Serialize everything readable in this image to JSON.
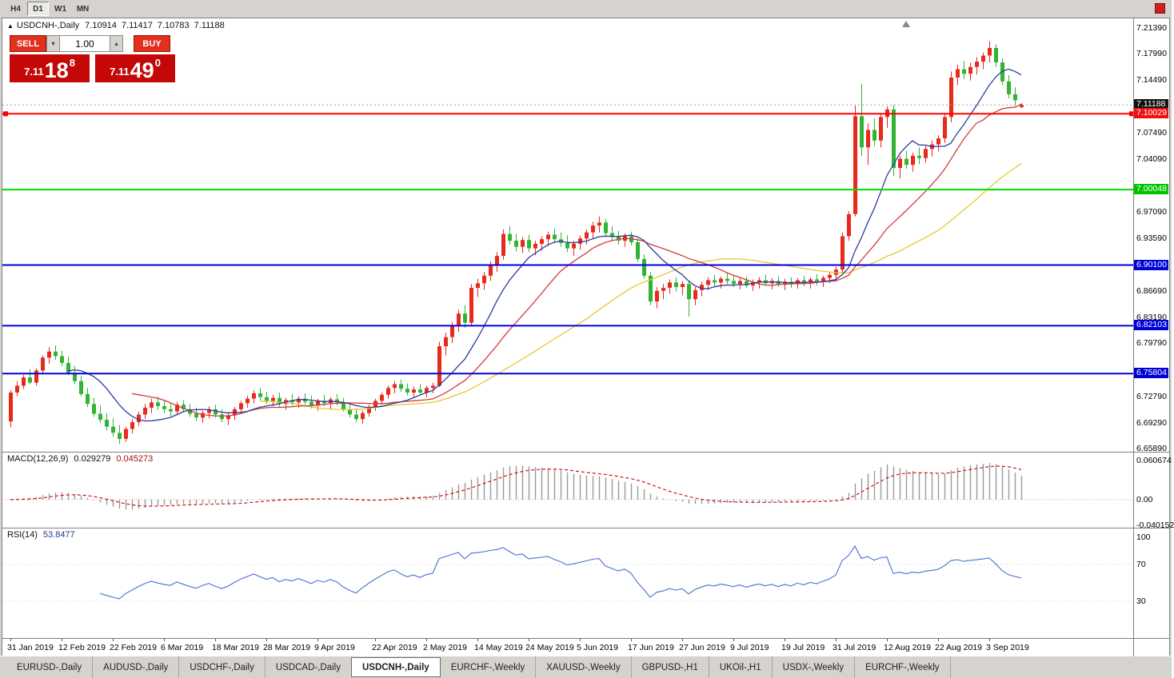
{
  "toolbar": {
    "periods": [
      "H4",
      "D1",
      "W1",
      "MN"
    ],
    "active_period": "D1"
  },
  "trade_panel": {
    "sell_label": "SELL",
    "buy_label": "BUY",
    "volume": "1.00",
    "sell_price": {
      "prefix": "7.11",
      "main": "18",
      "sup": "8"
    },
    "buy_price": {
      "prefix": "7.11",
      "main": "49",
      "sup": "0"
    }
  },
  "chart_header": {
    "symbol": "USDCNH-,Daily",
    "open": "7.10914",
    "high": "7.11417",
    "low": "7.10783",
    "close": "7.11188"
  },
  "current_price": 7.11188,
  "hlines": [
    {
      "price": 7.10029,
      "color": "#ff0000",
      "width": 2,
      "markers": true
    },
    {
      "price": 7.00048,
      "color": "#00dd00",
      "width": 2,
      "markers": false
    },
    {
      "price": 6.901,
      "color": "#0000e0",
      "width": 2,
      "markers": false
    },
    {
      "price": 6.82103,
      "color": "#0000e0",
      "width": 2,
      "markers": false
    },
    {
      "price": 6.75804,
      "color": "#0000e0",
      "width": 2,
      "markers": false
    }
  ],
  "price_axis": {
    "labels": [
      "7.21390",
      "7.17990",
      "7.14490",
      "7.07490",
      "7.04090",
      "6.97090",
      "6.93590",
      "6.86690",
      "6.83190",
      "6.79790",
      "6.72790",
      "6.69290",
      "6.65890"
    ],
    "special": [
      {
        "value": "7.11188",
        "bg": "#101010"
      },
      {
        "value": "7.10029",
        "bg": "#ee1111"
      },
      {
        "value": "7.00048",
        "bg": "#00c400"
      },
      {
        "value": "6.90100",
        "bg": "#0000d8"
      },
      {
        "value": "6.82103",
        "bg": "#0000d8"
      },
      {
        "value": "6.75804",
        "bg": "#0000d8"
      }
    ]
  },
  "indicators": {
    "macd": {
      "title": "MACD(12,26,9)",
      "value1": "0.029279",
      "value2": "0.045273",
      "axis": [
        "0.060674",
        "0.00",
        "-0.040152"
      ],
      "range": [
        -0.044,
        0.075
      ]
    },
    "rsi": {
      "title": "RSI(14)",
      "value": "53.8477",
      "axis": [
        100,
        70,
        30
      ],
      "levels": [
        70,
        30
      ],
      "range": [
        -10,
        110
      ]
    }
  },
  "tabs": [
    {
      "label": "EURUSD-,Daily",
      "active": false
    },
    {
      "label": "AUDUSD-,Daily",
      "active": false
    },
    {
      "label": "USDCHF-,Daily",
      "active": false
    },
    {
      "label": "USDCAD-,Daily",
      "active": false
    },
    {
      "label": "USDCNH-,Daily",
      "active": true
    },
    {
      "label": "EURCHF-,Weekly",
      "active": false
    },
    {
      "label": "XAUUSD-,Weekly",
      "active": false
    },
    {
      "label": "GBPUSD-,H1",
      "active": false
    },
    {
      "label": "UKOil-,H1",
      "active": false
    },
    {
      "label": "USDX-,Weekly",
      "active": false
    },
    {
      "label": "EURCHF-,Weekly",
      "active": false
    }
  ],
  "chart_data": {
    "type": "candlestick",
    "symbol": "USDCNH",
    "timeframe": "Daily",
    "price_range": [
      6.655,
      7.226
    ],
    "ma_periods": {
      "fast": 10,
      "mid": 20,
      "slow": 40
    },
    "colors": {
      "up": "#e8291c",
      "down": "#30b434",
      "ma_fast": "#2b3a9e",
      "ma_mid": "#d43a3a",
      "ma_slow": "#e6c92e",
      "macd_hist": "#9a9a9a",
      "macd_signal": "#cc0000",
      "rsi": "#4a6fd4"
    },
    "shift_marker_idx": 140,
    "date_labels": [
      {
        "label": "31 Jan 2019",
        "idx": 0
      },
      {
        "label": "12 Feb 2019",
        "idx": 8
      },
      {
        "label": "22 Feb 2019",
        "idx": 16
      },
      {
        "label": "6 Mar 2019",
        "idx": 24
      },
      {
        "label": "18 Mar 2019",
        "idx": 32
      },
      {
        "label": "28 Mar 2019",
        "idx": 40
      },
      {
        "label": "9 Apr 2019",
        "idx": 48
      },
      {
        "label": "22 Apr 2019",
        "idx": 57
      },
      {
        "label": "2 May 2019",
        "idx": 65
      },
      {
        "label": "14 May 2019",
        "idx": 73
      },
      {
        "label": "24 May 2019",
        "idx": 81
      },
      {
        "label": "5 Jun 2019",
        "idx": 89
      },
      {
        "label": "17 Jun 2019",
        "idx": 97
      },
      {
        "label": "27 Jun 2019",
        "idx": 105
      },
      {
        "label": "9 Jul 2019",
        "idx": 113
      },
      {
        "label": "19 Jul 2019",
        "idx": 121
      },
      {
        "label": "31 Jul 2019",
        "idx": 129
      },
      {
        "label": "12 Aug 2019",
        "idx": 137
      },
      {
        "label": "22 Aug 2019",
        "idx": 145
      },
      {
        "label": "3 Sep 2019",
        "idx": 153
      }
    ],
    "candles": [
      [
        6.695,
        6.736,
        6.687,
        6.733
      ],
      [
        6.733,
        6.748,
        6.728,
        6.742
      ],
      [
        6.742,
        6.756,
        6.738,
        6.753
      ],
      [
        6.753,
        6.764,
        6.744,
        6.746
      ],
      [
        6.746,
        6.765,
        6.742,
        6.762
      ],
      [
        6.762,
        6.782,
        6.758,
        6.779
      ],
      [
        6.779,
        6.793,
        6.771,
        6.787
      ],
      [
        6.787,
        6.795,
        6.776,
        6.781
      ],
      [
        6.781,
        6.788,
        6.768,
        6.772
      ],
      [
        6.772,
        6.78,
        6.756,
        6.759
      ],
      [
        6.759,
        6.768,
        6.744,
        6.748
      ],
      [
        6.748,
        6.755,
        6.728,
        6.731
      ],
      [
        6.731,
        6.739,
        6.714,
        6.718
      ],
      [
        6.718,
        6.726,
        6.701,
        6.705
      ],
      [
        6.705,
        6.716,
        6.693,
        6.697
      ],
      [
        6.697,
        6.706,
        6.683,
        6.688
      ],
      [
        6.688,
        6.699,
        6.675,
        6.68
      ],
      [
        6.68,
        6.69,
        6.665,
        6.672
      ],
      [
        6.672,
        6.688,
        6.668,
        6.685
      ],
      [
        6.685,
        6.698,
        6.679,
        6.694
      ],
      [
        6.694,
        6.708,
        6.689,
        6.704
      ],
      [
        6.704,
        6.718,
        6.698,
        6.713
      ],
      [
        6.713,
        6.725,
        6.706,
        6.72
      ],
      [
        6.72,
        6.728,
        6.71,
        6.715
      ],
      [
        6.715,
        6.723,
        6.706,
        6.711
      ],
      [
        6.711,
        6.719,
        6.702,
        6.708
      ],
      [
        6.708,
        6.721,
        6.703,
        6.717
      ],
      [
        6.717,
        6.723,
        6.707,
        6.711
      ],
      [
        6.711,
        6.718,
        6.701,
        6.705
      ],
      [
        6.705,
        6.713,
        6.696,
        6.7
      ],
      [
        6.7,
        6.709,
        6.693,
        6.706
      ],
      [
        6.706,
        6.715,
        6.699,
        6.711
      ],
      [
        6.711,
        6.717,
        6.7,
        6.704
      ],
      [
        6.704,
        6.711,
        6.694,
        6.698
      ],
      [
        6.698,
        6.707,
        6.69,
        6.703
      ],
      [
        6.703,
        6.714,
        6.697,
        6.711
      ],
      [
        6.711,
        6.722,
        6.706,
        6.719
      ],
      [
        6.719,
        6.729,
        6.713,
        6.725
      ],
      [
        6.725,
        6.736,
        6.719,
        6.732
      ],
      [
        6.732,
        6.739,
        6.723,
        6.727
      ],
      [
        6.727,
        6.734,
        6.718,
        6.722
      ],
      [
        6.722,
        6.73,
        6.715,
        6.726
      ],
      [
        6.726,
        6.733,
        6.714,
        6.718
      ],
      [
        6.718,
        6.726,
        6.71,
        6.723
      ],
      [
        6.723,
        6.731,
        6.716,
        6.72
      ],
      [
        6.72,
        6.728,
        6.713,
        6.725
      ],
      [
        6.725,
        6.732,
        6.717,
        6.721
      ],
      [
        6.721,
        6.729,
        6.712,
        6.716
      ],
      [
        6.716,
        6.725,
        6.709,
        6.722
      ],
      [
        6.722,
        6.73,
        6.715,
        6.719
      ],
      [
        6.719,
        6.727,
        6.711,
        6.724
      ],
      [
        6.724,
        6.731,
        6.716,
        6.72
      ],
      [
        6.72,
        6.726,
        6.708,
        6.711
      ],
      [
        6.711,
        6.718,
        6.7,
        6.704
      ],
      [
        6.704,
        6.712,
        6.694,
        6.698
      ],
      [
        6.698,
        6.709,
        6.692,
        6.706
      ],
      [
        6.706,
        6.717,
        6.701,
        6.714
      ],
      [
        6.714,
        6.725,
        6.709,
        6.722
      ],
      [
        6.722,
        6.733,
        6.717,
        6.73
      ],
      [
        6.73,
        6.742,
        6.725,
        6.739
      ],
      [
        6.739,
        6.748,
        6.732,
        6.744
      ],
      [
        6.744,
        6.75,
        6.734,
        6.738
      ],
      [
        6.738,
        6.745,
        6.729,
        6.733
      ],
      [
        6.733,
        6.741,
        6.726,
        6.737
      ],
      [
        6.737,
        6.744,
        6.729,
        6.733
      ],
      [
        6.733,
        6.742,
        6.727,
        6.739
      ],
      [
        6.739,
        6.746,
        6.732,
        6.742
      ],
      [
        6.742,
        6.8,
        6.74,
        6.794
      ],
      [
        6.794,
        6.812,
        6.782,
        6.806
      ],
      [
        6.806,
        6.826,
        6.798,
        6.821
      ],
      [
        6.821,
        6.842,
        6.813,
        6.837
      ],
      [
        6.837,
        6.848,
        6.818,
        6.825
      ],
      [
        6.825,
        6.876,
        6.822,
        6.871
      ],
      [
        6.871,
        6.883,
        6.859,
        6.877
      ],
      [
        6.877,
        6.892,
        6.868,
        6.887
      ],
      [
        6.887,
        6.906,
        6.88,
        6.901
      ],
      [
        6.901,
        6.918,
        6.892,
        6.913
      ],
      [
        6.913,
        6.948,
        6.908,
        6.942
      ],
      [
        6.942,
        6.952,
        6.928,
        6.933
      ],
      [
        6.933,
        6.942,
        6.919,
        6.925
      ],
      [
        6.925,
        6.938,
        6.917,
        6.934
      ],
      [
        6.934,
        6.941,
        6.918,
        6.923
      ],
      [
        6.923,
        6.933,
        6.914,
        6.929
      ],
      [
        6.929,
        6.939,
        6.92,
        6.935
      ],
      [
        6.935,
        6.945,
        6.926,
        6.941
      ],
      [
        6.941,
        6.949,
        6.93,
        6.935
      ],
      [
        6.935,
        6.944,
        6.925,
        6.93
      ],
      [
        6.93,
        6.94,
        6.918,
        6.923
      ],
      [
        6.923,
        6.933,
        6.913,
        6.929
      ],
      [
        6.929,
        6.94,
        6.921,
        6.936
      ],
      [
        6.936,
        6.948,
        6.928,
        6.944
      ],
      [
        6.944,
        6.958,
        6.936,
        6.953
      ],
      [
        6.953,
        6.965,
        6.944,
        6.957
      ],
      [
        6.957,
        6.962,
        6.938,
        6.943
      ],
      [
        6.943,
        6.952,
        6.933,
        6.938
      ],
      [
        6.938,
        6.946,
        6.928,
        6.933
      ],
      [
        6.933,
        6.943,
        6.925,
        6.939
      ],
      [
        6.939,
        6.945,
        6.927,
        6.931
      ],
      [
        6.931,
        6.936,
        6.905,
        6.909
      ],
      [
        6.909,
        6.915,
        6.883,
        6.887
      ],
      [
        6.887,
        6.892,
        6.848,
        6.853
      ],
      [
        6.853,
        6.872,
        6.844,
        6.867
      ],
      [
        6.867,
        6.876,
        6.856,
        6.871
      ],
      [
        6.871,
        6.882,
        6.863,
        6.878
      ],
      [
        6.878,
        6.885,
        6.866,
        6.872
      ],
      [
        6.872,
        6.88,
        6.861,
        6.876
      ],
      [
        6.876,
        6.88,
        6.833,
        6.856
      ],
      [
        6.856,
        6.872,
        6.848,
        6.868
      ],
      [
        6.868,
        6.879,
        6.86,
        6.875
      ],
      [
        6.875,
        6.885,
        6.868,
        6.881
      ],
      [
        6.881,
        6.888,
        6.873,
        6.878
      ],
      [
        6.878,
        6.886,
        6.87,
        6.883
      ],
      [
        6.883,
        6.89,
        6.876,
        6.88
      ],
      [
        6.88,
        6.887,
        6.872,
        6.876
      ],
      [
        6.876,
        6.884,
        6.869,
        6.88
      ],
      [
        6.88,
        6.886,
        6.871,
        6.874
      ],
      [
        6.874,
        6.882,
        6.867,
        6.878
      ],
      [
        6.878,
        6.885,
        6.87,
        6.881
      ],
      [
        6.881,
        6.888,
        6.874,
        6.877
      ],
      [
        6.877,
        6.884,
        6.869,
        6.88
      ],
      [
        6.88,
        6.886,
        6.872,
        6.875
      ],
      [
        6.875,
        6.883,
        6.868,
        6.879
      ],
      [
        6.879,
        6.885,
        6.871,
        6.876
      ],
      [
        6.876,
        6.884,
        6.87,
        6.881
      ],
      [
        6.881,
        6.887,
        6.873,
        6.878
      ],
      [
        6.878,
        6.885,
        6.87,
        6.882
      ],
      [
        6.882,
        6.889,
        6.874,
        6.88
      ],
      [
        6.88,
        6.887,
        6.872,
        6.884
      ],
      [
        6.884,
        6.892,
        6.877,
        6.888
      ],
      [
        6.888,
        6.899,
        6.881,
        6.895
      ],
      [
        6.895,
        6.944,
        6.89,
        6.939
      ],
      [
        6.939,
        6.972,
        6.933,
        6.968
      ],
      [
        6.968,
        7.111,
        6.965,
        7.097
      ],
      [
        7.097,
        7.14,
        7.045,
        7.056
      ],
      [
        7.056,
        7.088,
        7.033,
        7.079
      ],
      [
        7.079,
        7.094,
        7.058,
        7.065
      ],
      [
        7.065,
        7.101,
        7.056,
        7.096
      ],
      [
        7.096,
        7.11,
        7.082,
        7.106
      ],
      [
        7.106,
        7.112,
        7.018,
        7.029
      ],
      [
        7.029,
        7.045,
        7.015,
        7.041
      ],
      [
        7.041,
        7.052,
        7.028,
        7.033
      ],
      [
        7.033,
        7.049,
        7.024,
        7.045
      ],
      [
        7.045,
        7.056,
        7.034,
        7.042
      ],
      [
        7.042,
        7.058,
        7.036,
        7.054
      ],
      [
        7.054,
        7.065,
        7.044,
        7.06
      ],
      [
        7.06,
        7.072,
        7.051,
        7.068
      ],
      [
        7.068,
        7.1,
        7.062,
        7.096
      ],
      [
        7.096,
        7.156,
        7.089,
        7.148
      ],
      [
        7.148,
        7.165,
        7.138,
        7.159
      ],
      [
        7.159,
        7.17,
        7.146,
        7.153
      ],
      [
        7.153,
        7.168,
        7.144,
        7.162
      ],
      [
        7.162,
        7.175,
        7.152,
        7.169
      ],
      [
        7.169,
        7.181,
        7.159,
        7.177
      ],
      [
        7.177,
        7.196,
        7.168,
        7.187
      ],
      [
        7.187,
        7.192,
        7.162,
        7.168
      ],
      [
        7.168,
        7.173,
        7.138,
        7.143
      ],
      [
        7.143,
        7.151,
        7.121,
        7.126
      ],
      [
        7.126,
        7.135,
        7.111,
        7.118
      ],
      [
        7.1091,
        7.1142,
        7.1078,
        7.1119
      ]
    ]
  }
}
